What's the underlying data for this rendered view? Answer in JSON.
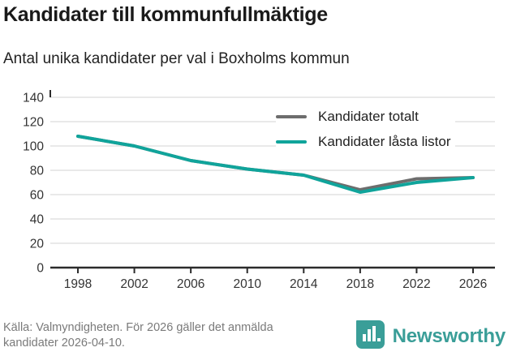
{
  "header": {
    "title": "Kandidater till kommunfullmäktige",
    "subtitle": "Antal unika kandidater per val i Boxholms kommun"
  },
  "chart_data": {
    "type": "line",
    "title": "Kandidater till kommunfullmäktige",
    "subtitle": "Antal unika kandidater per val i Boxholms kommun",
    "categories": [
      "1998",
      "2002",
      "2006",
      "2010",
      "2014",
      "2018",
      "2022",
      "2026"
    ],
    "series": [
      {
        "name": "Kandidater totalt",
        "color": "#6d6d6d",
        "values": [
          108,
          100,
          88,
          81,
          76,
          64,
          73,
          74
        ]
      },
      {
        "name": "Kandidater låsta listor",
        "color": "#10a49b",
        "values": [
          108,
          100,
          88,
          81,
          76,
          62,
          70,
          74
        ]
      }
    ],
    "xlabel": "",
    "ylabel": "",
    "ylim": [
      0,
      140
    ],
    "yticks": [
      0,
      20,
      40,
      60,
      80,
      100,
      120,
      140
    ],
    "grid": true,
    "legend_position": "top-right"
  },
  "footer": {
    "source_line1": "Källa: Valmyndigheten. För 2026 gäller det anmälda",
    "source_line2": "kandidater 2026-04-10.",
    "brand": "Newsworthy"
  },
  "colors": {
    "accent_teal": "#10a49b",
    "series_gray": "#6d6d6d",
    "brand_teal": "#3a9e98",
    "grid": "#e2e2e2",
    "axis": "#2b2b2b",
    "tick_text": "#333333",
    "muted_text": "#7a7a7a"
  }
}
